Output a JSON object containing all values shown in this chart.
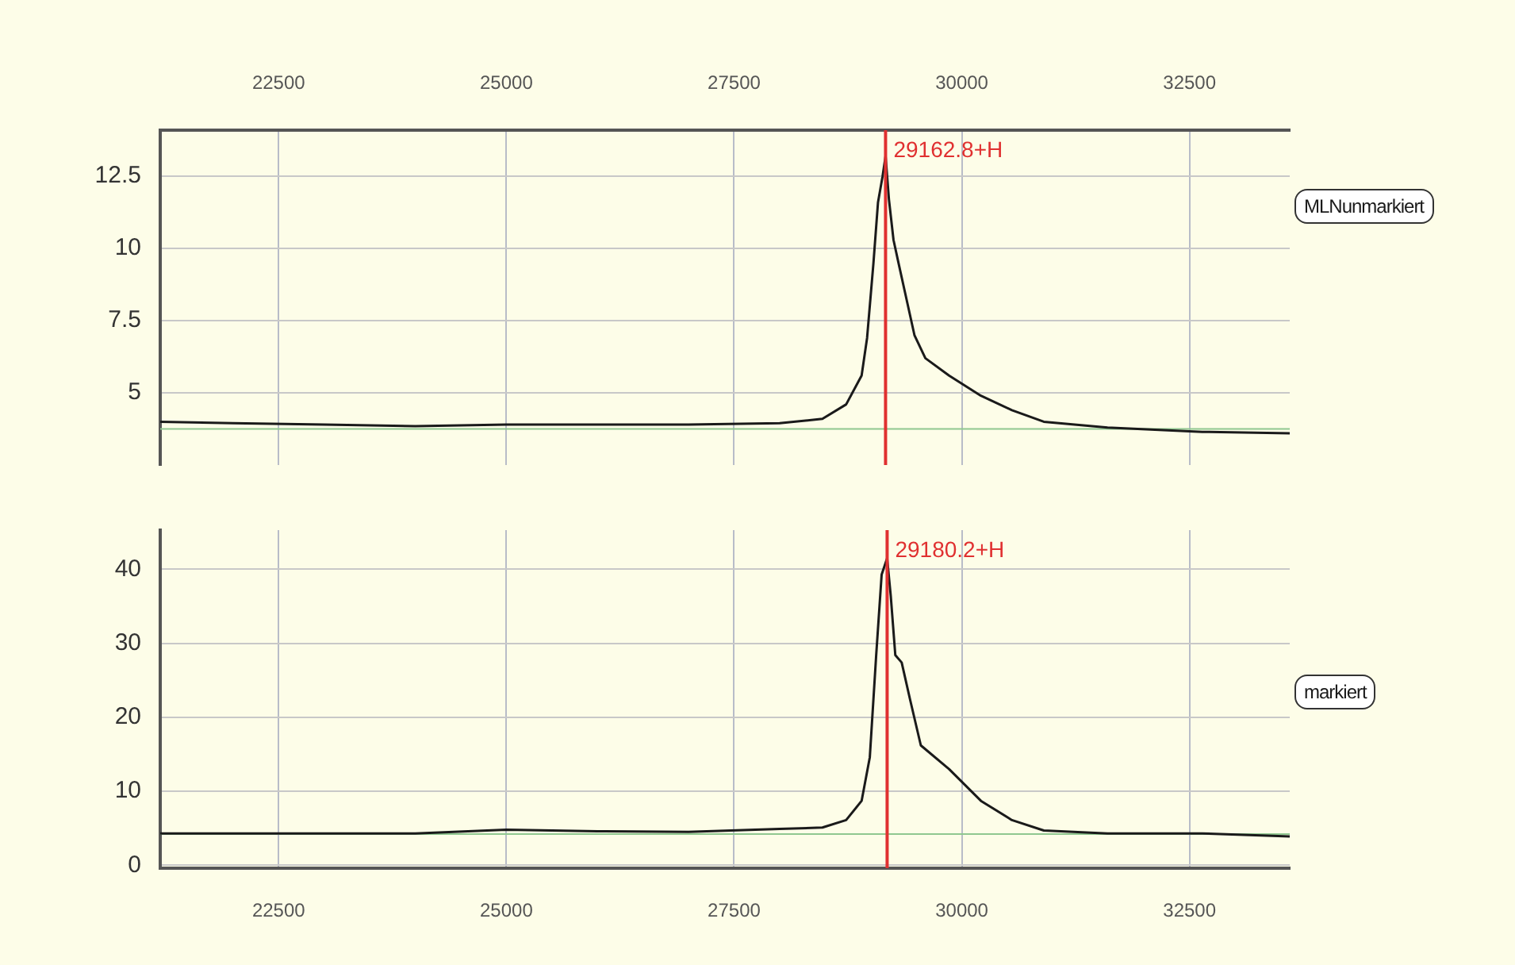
{
  "chart_data": [
    {
      "type": "line",
      "xlim": [
        21200,
        33600
      ],
      "xticks": [
        22500,
        25000,
        27500,
        30000,
        32500
      ],
      "ylim": [
        2.5,
        14.1
      ],
      "yticks": [
        5,
        7.5,
        10,
        12.5
      ],
      "grid": true,
      "legend": "right",
      "marker": "none",
      "line_style": "solid",
      "series": [
        {
          "name": "MLNunmarkiert",
          "color": "#1a1a1a",
          "x": [
            21200,
            22000,
            23000,
            24000,
            25000,
            26000,
            27000,
            28000,
            28470,
            28730,
            28900,
            28960,
            29030,
            29080,
            29130,
            29163,
            29200,
            29250,
            29305,
            29375,
            29480,
            29600,
            29860,
            30210,
            30550,
            30900,
            31600,
            32640,
            33600
          ],
          "values": [
            4.0,
            3.95,
            3.9,
            3.85,
            3.9,
            3.9,
            3.9,
            3.95,
            4.1,
            4.6,
            5.6,
            6.9,
            9.5,
            11.6,
            12.5,
            13.2,
            11.7,
            10.3,
            9.5,
            8.5,
            7.0,
            6.2,
            5.6,
            4.9,
            4.4,
            4.0,
            3.8,
            3.65,
            3.6
          ]
        }
      ],
      "ref_lines": [
        {
          "axis": "x",
          "value": 29162.8,
          "label": "29162.8+H",
          "color": "#e03030"
        },
        {
          "axis": "y",
          "value": 3.75,
          "color": "#90c890"
        }
      ]
    },
    {
      "type": "line",
      "xlim": [
        21200,
        33600
      ],
      "xticks": [
        22500,
        25000,
        27500,
        30000,
        32500
      ],
      "ylim": [
        -0.4,
        45.3
      ],
      "yticks": [
        0,
        10,
        20,
        30,
        40
      ],
      "grid": true,
      "legend": "right",
      "marker": "none",
      "line_style": "solid",
      "series": [
        {
          "name": "markiert",
          "color": "#1a1a1a",
          "x": [
            21200,
            22000,
            23000,
            24000,
            25000,
            25500,
            26000,
            27000,
            28000,
            28470,
            28730,
            28900,
            28990,
            29060,
            29120,
            29180,
            29220,
            29270,
            29340,
            29430,
            29550,
            29860,
            30210,
            30550,
            30900,
            31600,
            32640,
            33600
          ],
          "values": [
            4.3,
            4.3,
            4.3,
            4.3,
            4.8,
            4.7,
            4.6,
            4.5,
            4.9,
            5.1,
            6.1,
            8.7,
            14.6,
            28.4,
            39.3,
            41.5,
            36.4,
            28.4,
            27.4,
            22.5,
            16.2,
            13,
            8.7,
            6.1,
            4.7,
            4.3,
            4.3,
            3.9
          ]
        }
      ],
      "ref_lines": [
        {
          "axis": "x",
          "value": 29180.2,
          "label": "29180.2+H",
          "color": "#e03030"
        },
        {
          "axis": "y",
          "value": 4.2,
          "color": "#90c890"
        }
      ]
    }
  ]
}
